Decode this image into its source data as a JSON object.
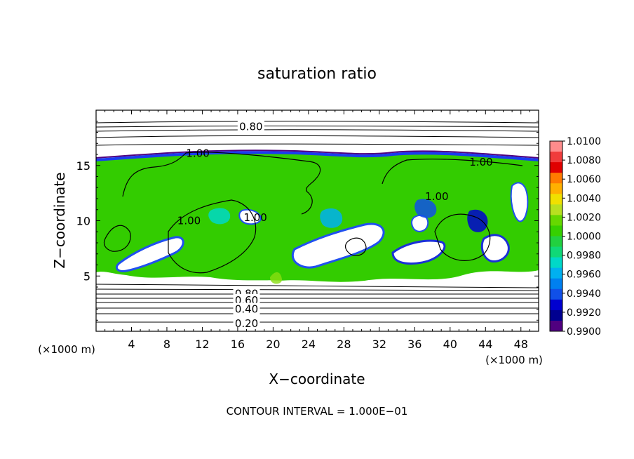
{
  "chart_data": {
    "type": "heatmap",
    "title": "saturation ratio",
    "xlabel": "X−coordinate",
    "ylabel": "Z−coordinate",
    "x_units": "(×1000 m)",
    "y_units": "(×1000 m)",
    "xlim": [
      0,
      50
    ],
    "ylim": [
      0,
      20
    ],
    "x_ticks": [
      4,
      8,
      12,
      16,
      20,
      24,
      28,
      32,
      36,
      40,
      44,
      48
    ],
    "y_ticks": [
      5,
      10,
      15
    ],
    "grid": false,
    "colorbar": {
      "placement": "right",
      "labels": [
        "1.0100",
        "1.0080",
        "1.0060",
        "1.0040",
        "1.0020",
        "1.0000",
        "0.9980",
        "0.9960",
        "0.9940",
        "0.9920",
        "0.9900"
      ],
      "colors": [
        "#ff8c8c",
        "#f03c3c",
        "#e00000",
        "#ff7a00",
        "#ffb000",
        "#f0e000",
        "#b8e020",
        "#66d800",
        "#36d000",
        "#22d040",
        "#10d878",
        "#00d8c8",
        "#00b0f0",
        "#0080f0",
        "#1050e8",
        "#0000d0",
        "#000090",
        "#500080"
      ]
    },
    "contour_labels": [
      {
        "text": "0.80",
        "x": 17.5,
        "y": 18.5
      },
      {
        "text": "1.00",
        "x": 11.5,
        "y": 16.1
      },
      {
        "text": "1.00",
        "x": 43.5,
        "y": 15.3
      },
      {
        "text": "1.00",
        "x": 38.5,
        "y": 12.2
      },
      {
        "text": "1.00",
        "x": 10.5,
        "y": 10.0
      },
      {
        "text": "1.00",
        "x": 18.0,
        "y": 10.3
      },
      {
        "text": "0.80",
        "x": 17.0,
        "y": 3.4
      },
      {
        "text": "0.60",
        "x": 17.0,
        "y": 2.8
      },
      {
        "text": "0.40",
        "x": 17.0,
        "y": 2.0
      },
      {
        "text": "0.20",
        "x": 17.0,
        "y": 0.7
      }
    ],
    "footnote": "CONTOUR INTERVAL = 1.000E−01"
  }
}
